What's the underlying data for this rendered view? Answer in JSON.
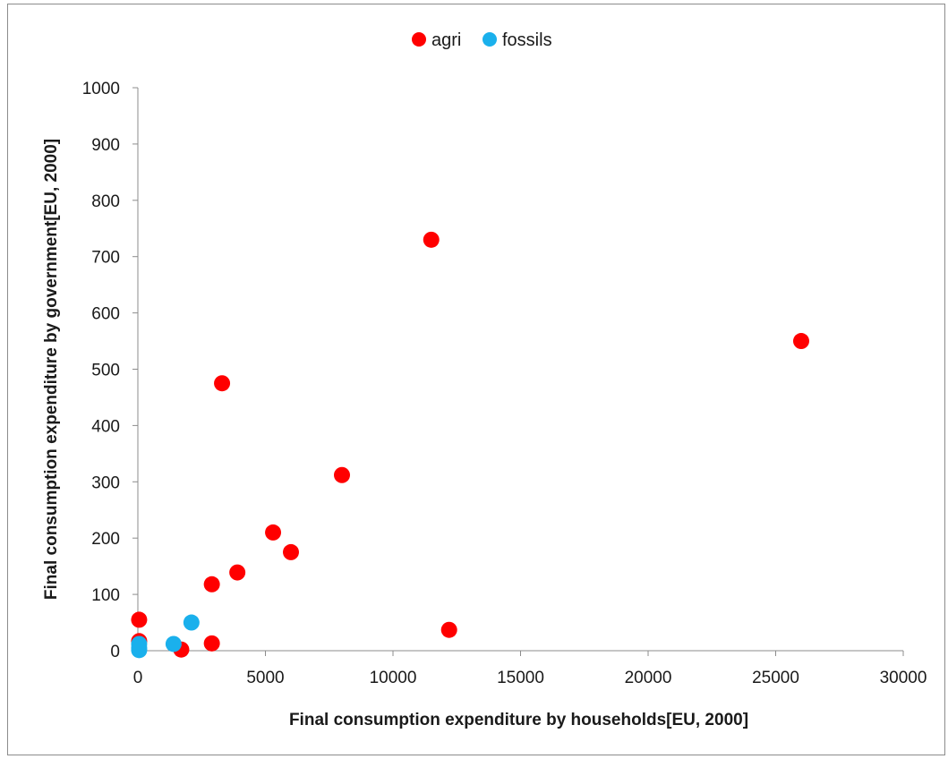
{
  "chart_data": {
    "type": "scatter",
    "title": "",
    "xlabel": "Final consumption expenditure by households[EU, 2000]",
    "ylabel": "Final consumption expenditure by government[EU, 2000]",
    "xlim": [
      0,
      30000
    ],
    "ylim": [
      0,
      1000
    ],
    "xticks": [
      0,
      5000,
      10000,
      15000,
      20000,
      25000,
      30000
    ],
    "yticks": [
      0,
      100,
      200,
      300,
      400,
      500,
      600,
      700,
      800,
      900,
      1000
    ],
    "grid": false,
    "legend_position": "top-center",
    "series": [
      {
        "name": "agri",
        "color": "#ff0000",
        "points": [
          {
            "x": 26000,
            "y": 550
          },
          {
            "x": 11500,
            "y": 730
          },
          {
            "x": 3300,
            "y": 475
          },
          {
            "x": 8000,
            "y": 312
          },
          {
            "x": 5300,
            "y": 210
          },
          {
            "x": 6000,
            "y": 175
          },
          {
            "x": 3900,
            "y": 139
          },
          {
            "x": 2900,
            "y": 118
          },
          {
            "x": 12200,
            "y": 37
          },
          {
            "x": 2900,
            "y": 13
          },
          {
            "x": 1700,
            "y": 2
          },
          {
            "x": 50,
            "y": 55
          },
          {
            "x": 50,
            "y": 17
          }
        ]
      },
      {
        "name": "fossils",
        "color": "#1ab0ec",
        "points": [
          {
            "x": 2100,
            "y": 50
          },
          {
            "x": 1400,
            "y": 12
          },
          {
            "x": 50,
            "y": 12
          },
          {
            "x": 50,
            "y": 5
          },
          {
            "x": 50,
            "y": 1
          }
        ]
      }
    ]
  }
}
